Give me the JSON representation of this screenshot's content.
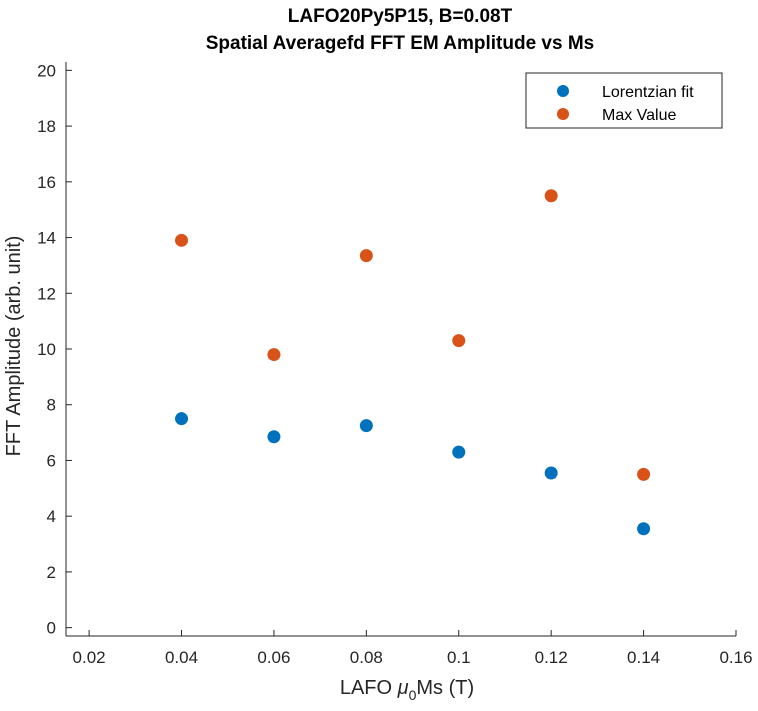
{
  "chart_data": {
    "type": "scatter",
    "title": [
      "LAFO20Py5P15, B=0.08T",
      "Spatial Averagefd FFT EM Amplitude vs Ms"
    ],
    "xlabel": {
      "prefix": "LAFO ",
      "symbol": "μ",
      "subscript": "0",
      "suffix": "Ms (T)"
    },
    "ylabel": "FFT Amplitude (arb. unit)",
    "xlim": [
      0.015,
      0.16
    ],
    "ylim": [
      -0.3,
      20.3
    ],
    "xticks": [
      0.02,
      0.04,
      0.06,
      0.08,
      0.1,
      0.12,
      0.14,
      0.16
    ],
    "xtick_labels": [
      "0.02",
      "0.04",
      "0.06",
      "0.08",
      "0.1",
      "0.12",
      "0.14",
      "0.16"
    ],
    "yticks": [
      0,
      2,
      4,
      6,
      8,
      10,
      12,
      14,
      16,
      18,
      20
    ],
    "ytick_labels": [
      "0",
      "2",
      "4",
      "6",
      "8",
      "10",
      "12",
      "14",
      "16",
      "18",
      "20"
    ],
    "grid": false,
    "legend_position": "top-right",
    "series": [
      {
        "name": "Lorentzian fit",
        "color": "#0072BD",
        "x": [
          0.04,
          0.06,
          0.08,
          0.1,
          0.12,
          0.14
        ],
        "y": [
          7.5,
          6.85,
          7.25,
          6.3,
          5.55,
          3.55
        ]
      },
      {
        "name": "Max Value",
        "color": "#D95319",
        "x": [
          0.04,
          0.06,
          0.08,
          0.1,
          0.12,
          0.14
        ],
        "y": [
          13.9,
          9.8,
          13.35,
          10.3,
          15.5,
          5.5
        ]
      }
    ]
  }
}
